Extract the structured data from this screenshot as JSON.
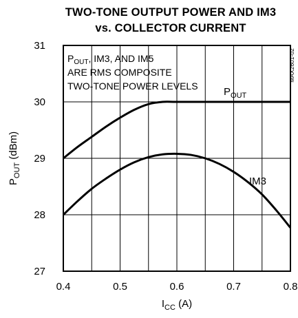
{
  "chart_data": {
    "type": "line",
    "title_line1": "TWO-TONE OUTPUT POWER AND IM3",
    "title_line2": "vs. COLLECTOR CURRENT",
    "xlabel": {
      "main": "I",
      "sub": "CC",
      "rest": " (A)"
    },
    "ylabel": {
      "main": "P",
      "sub": "OUT",
      "rest": " (dBm)"
    },
    "xlim": [
      0.4,
      0.8
    ],
    "ylim": [
      27,
      31
    ],
    "xticks": [
      0.4,
      0.5,
      0.6,
      0.7,
      0.8
    ],
    "xtick_labels": [
      "0.4",
      "0.5",
      "0.6",
      "0.7",
      "0.8"
    ],
    "yticks": [
      27,
      28,
      29,
      30,
      31
    ],
    "ytick_labels": [
      "27",
      "28",
      "29",
      "30",
      "31"
    ],
    "grid": true,
    "annotation": {
      "line1_main": "P",
      "line1_sub": "OUT",
      "line1_rest": ", IM3, AND IM5",
      "line2": "ARE RMS COMPOSITE",
      "line3": "TWO-TONE POWER LEVELS"
    },
    "side_label": "MAX2601-02",
    "series": [
      {
        "name": "POUT",
        "label_main": "P",
        "label_sub": "OUT",
        "x": [
          0.4,
          0.425,
          0.45,
          0.475,
          0.5,
          0.525,
          0.55,
          0.575,
          0.6,
          0.65,
          0.7,
          0.75,
          0.8
        ],
        "y": [
          29.0,
          29.2,
          29.38,
          29.56,
          29.72,
          29.86,
          29.96,
          30.0,
          30.0,
          30.0,
          30.0,
          30.0,
          30.0
        ]
      },
      {
        "name": "IM3",
        "label_main": "IM3",
        "label_sub": "",
        "x": [
          0.4,
          0.425,
          0.45,
          0.475,
          0.5,
          0.525,
          0.55,
          0.575,
          0.6,
          0.625,
          0.65,
          0.675,
          0.7,
          0.725,
          0.75,
          0.775,
          0.8
        ],
        "y": [
          28.0,
          28.24,
          28.46,
          28.64,
          28.8,
          28.93,
          29.02,
          29.07,
          29.08,
          29.06,
          29.0,
          28.9,
          28.76,
          28.58,
          28.36,
          28.08,
          27.77
        ]
      }
    ]
  }
}
